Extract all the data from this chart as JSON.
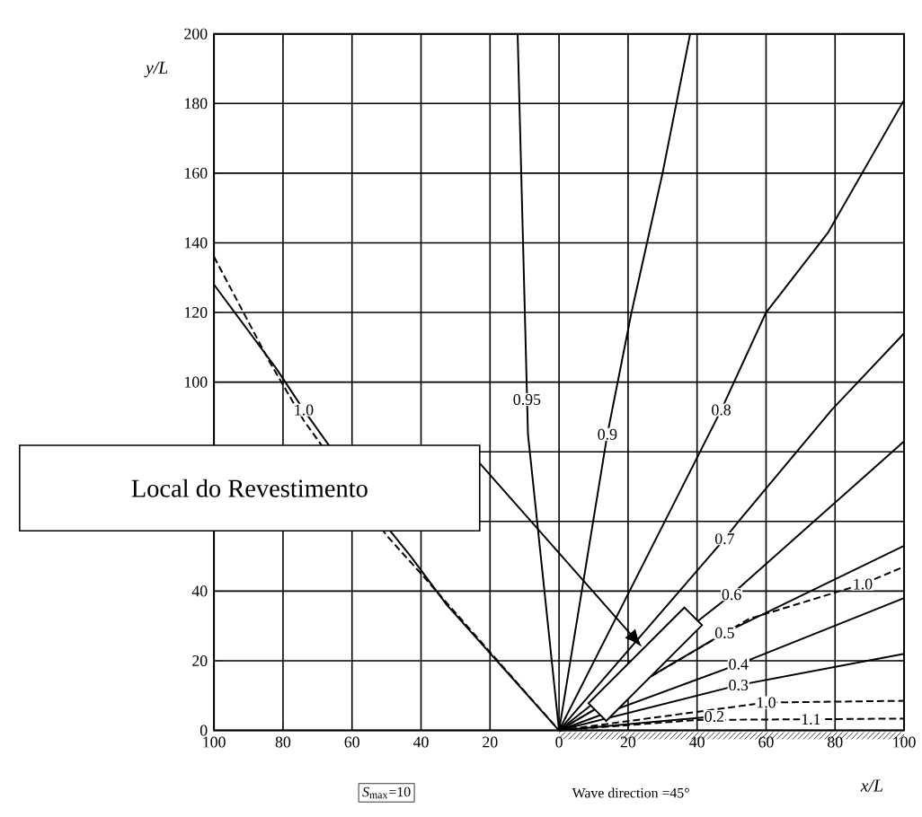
{
  "chart_data": {
    "type": "line",
    "xlabel": "x/L",
    "ylabel": "y/L",
    "xlim": [
      -100,
      100
    ],
    "ylim": [
      0,
      200
    ],
    "xticks": [
      {
        "value": -100,
        "label": "100"
      },
      {
        "value": -80,
        "label": "80"
      },
      {
        "value": -60,
        "label": "60"
      },
      {
        "value": -40,
        "label": "40"
      },
      {
        "value": -20,
        "label": "20"
      },
      0,
      20,
      40,
      60,
      80,
      100
    ],
    "yticks": [
      0,
      20,
      40,
      {
        "value": 60,
        "label": null
      },
      {
        "value": 80,
        "label": null
      },
      100,
      120,
      140,
      160,
      180,
      200
    ],
    "grid": true,
    "series": [
      {
        "color": "#000000",
        "line_style": "solid",
        "x": [
          0,
          -9,
          -12
        ],
        "values": [
          0,
          85,
          200
        ]
      },
      {
        "color": "#000000",
        "line_style": "solid",
        "x": [
          0,
          14,
          21,
          30,
          38
        ],
        "values": [
          0,
          85,
          120,
          160,
          200
        ]
      },
      {
        "color": "#000000",
        "line_style": "solid",
        "x": [
          0,
          47,
          60,
          78,
          100
        ],
        "values": [
          0,
          92,
          120,
          143,
          181
        ]
      },
      {
        "color": "#000000",
        "line_style": "solid",
        "x": [
          0,
          48,
          52,
          79,
          100
        ],
        "values": [
          0,
          55,
          60,
          92,
          114
        ]
      },
      {
        "color": "#000000",
        "line_style": "solid",
        "x": [
          0,
          50,
          100
        ],
        "values": [
          0,
          39,
          83
        ]
      },
      {
        "color": "#000000",
        "line_style": "solid",
        "x": [
          0,
          48,
          100
        ],
        "values": [
          0,
          28,
          53
        ]
      },
      {
        "color": "#000000",
        "line_style": "dashed",
        "x": [
          0,
          55,
          88,
          100
        ],
        "values": [
          0,
          32,
          42,
          47
        ]
      },
      {
        "color": "#000000",
        "line_style": "solid",
        "x": [
          0,
          52,
          100
        ],
        "values": [
          0,
          19,
          38
        ]
      },
      {
        "color": "#000000",
        "line_style": "solid",
        "x": [
          0,
          52,
          100
        ],
        "values": [
          0,
          13,
          22
        ]
      },
      {
        "color": "#000000",
        "line_style": "solid",
        "x": [
          0,
          45
        ],
        "values": [
          0,
          4
        ]
      },
      {
        "color": "#000000",
        "line_style": "dashed",
        "x": [
          0,
          60,
          100
        ],
        "values": [
          0,
          8,
          8.5
        ]
      },
      {
        "color": "#000000",
        "line_style": "dashed",
        "x": [
          0,
          40,
          73,
          100
        ],
        "values": [
          0,
          3,
          3.2,
          3.4
        ]
      },
      {
        "color": "#000000",
        "line_style": "solid",
        "x": [
          -100,
          -82,
          -74,
          -49.5,
          -43,
          -32.5,
          0
        ],
        "values": [
          128,
          104,
          92,
          58,
          50,
          36,
          0
        ]
      },
      {
        "color": "#000000",
        "line_style": "dashed",
        "x": [
          -100,
          -84,
          -74,
          -50,
          -40,
          0
        ],
        "values": [
          136,
          106,
          89,
          56,
          45,
          0
        ]
      }
    ],
    "annotations": [
      {
        "text": "0.95",
        "x": -9.3,
        "y": 95
      },
      {
        "text": "0.9",
        "x": 14,
        "y": 85
      },
      {
        "text": "0.8",
        "x": 47,
        "y": 92
      },
      {
        "text": "0.7",
        "x": 48,
        "y": 55
      },
      {
        "text": "0.6",
        "x": 50,
        "y": 39
      },
      {
        "text": "0.5",
        "x": 48,
        "y": 28
      },
      {
        "text": "0.4",
        "x": 52,
        "y": 19
      },
      {
        "text": "0.3",
        "x": 52,
        "y": 13
      },
      {
        "text": "0.2",
        "x": 45,
        "y": 4
      },
      {
        "text": "1.0",
        "x": 88,
        "y": 42
      },
      {
        "text": "1.0",
        "x": 60,
        "y": 8
      },
      {
        "text": "1.1",
        "x": 73,
        "y": 3.2
      },
      {
        "text": "1.0",
        "x": -74,
        "y": 92
      },
      "Local do Revestimento",
      "*S*$_{max}$=10",
      "Wave direction =45°"
    ]
  }
}
